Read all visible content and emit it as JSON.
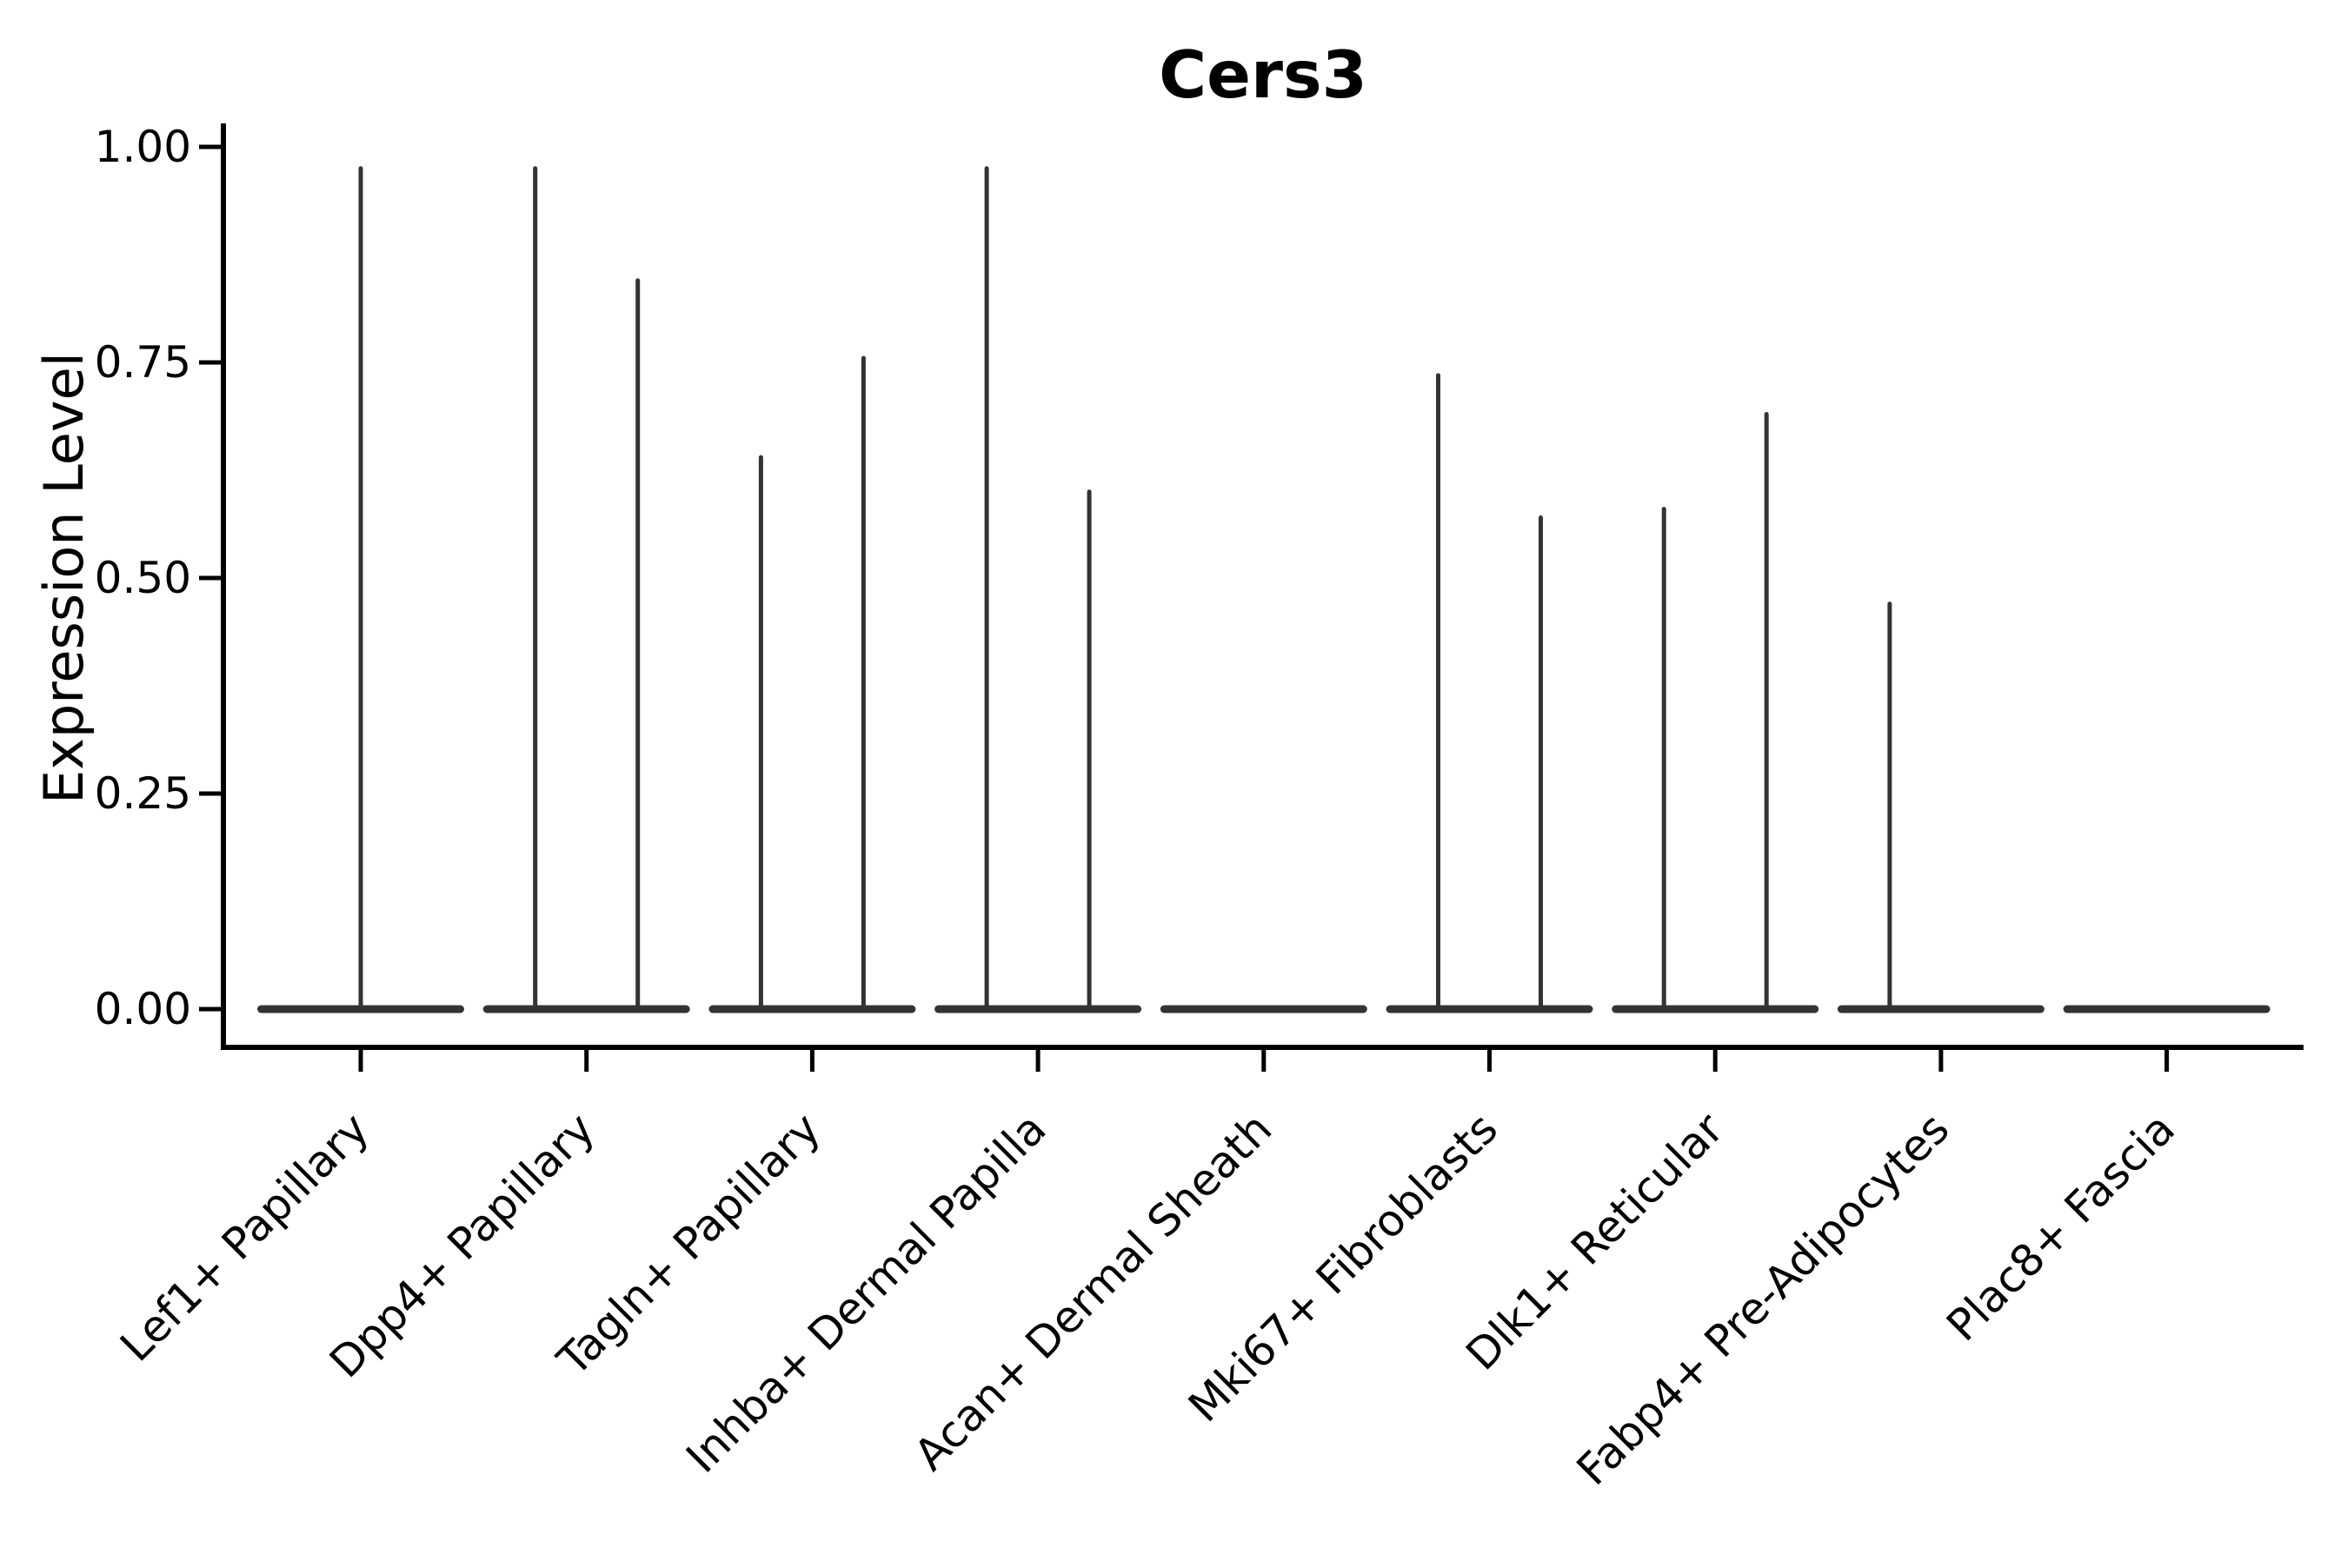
{
  "chart_data": {
    "type": "violin",
    "title": "Cers3",
    "ylabel": "Expression Level",
    "xlabel": "",
    "ylim": [
      0,
      1.0
    ],
    "ytick_labels": [
      "1.00",
      "0.75",
      "0.50",
      "0.25",
      "0.00"
    ],
    "grid": false,
    "legend": null,
    "categories": [
      "Lef1+ Papillary",
      "Dpp4+ Papillary",
      "Tagln+ Papillary",
      "Inhba+ Dermal Papilla",
      "Acan+ Dermal Sheath",
      "Mki67+ Fibroblasts",
      "Dlk1+ Reticular",
      "Fabp4+ Pre-Adipocytes",
      "Plac8+ Fascia"
    ],
    "violins": [
      {
        "category": "Lef1+ Papillary",
        "spikes": [
          {
            "position": "center",
            "max": 0.975
          }
        ]
      },
      {
        "category": "Dpp4+ Papillary",
        "spikes": [
          {
            "position": "left",
            "max": 0.975
          },
          {
            "position": "right",
            "max": 0.845
          }
        ]
      },
      {
        "category": "Tagln+ Papillary",
        "spikes": [
          {
            "position": "left",
            "max": 0.64
          },
          {
            "position": "right",
            "max": 0.755
          }
        ]
      },
      {
        "category": "Inhba+ Dermal Papilla",
        "spikes": [
          {
            "position": "left",
            "max": 0.975
          },
          {
            "position": "right",
            "max": 0.6
          }
        ]
      },
      {
        "category": "Acan+ Dermal Sheath",
        "spikes": []
      },
      {
        "category": "Mki67+ Fibroblasts",
        "spikes": [
          {
            "position": "left",
            "max": 0.735
          },
          {
            "position": "right",
            "max": 0.57
          }
        ]
      },
      {
        "category": "Dlk1+ Reticular",
        "spikes": [
          {
            "position": "left",
            "max": 0.58
          },
          {
            "position": "right",
            "max": 0.69
          }
        ]
      },
      {
        "category": "Fabp4+ Pre-Adipocytes",
        "spikes": [
          {
            "position": "left",
            "max": 0.47
          }
        ]
      },
      {
        "category": "Plac8+ Fascia",
        "spikes": []
      }
    ],
    "baseline_value": 0.0,
    "colors": {
      "violin": "#333333",
      "axis": "#000000",
      "background": "#ffffff"
    }
  }
}
